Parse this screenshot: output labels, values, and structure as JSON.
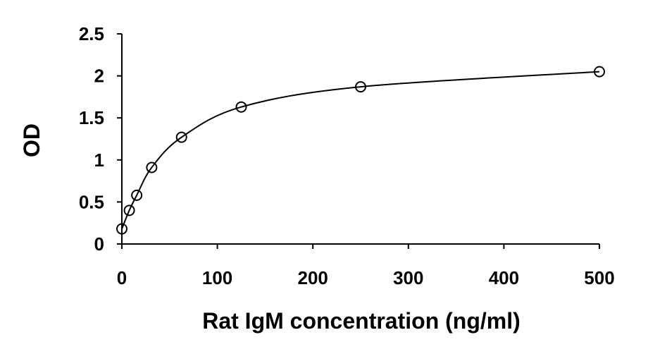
{
  "chart_data": {
    "type": "scatter",
    "title": "",
    "xlabel": "Rat IgM concentration (ng/ml)",
    "ylabel": "OD",
    "xlim": [
      0,
      500
    ],
    "ylim": [
      0,
      2.5
    ],
    "xticks": [
      0,
      100,
      200,
      300,
      400,
      500
    ],
    "xtick_labels": [
      "0",
      "100",
      "200",
      "300",
      "400",
      "500"
    ],
    "yticks": [
      0,
      0.5,
      1,
      1.5,
      2,
      2.5
    ],
    "ytick_labels": [
      "0",
      "0.5",
      "1",
      "1.5",
      "2",
      "2.5"
    ],
    "grid": false,
    "legend": false,
    "marker": "open-circle",
    "fit_line": "smooth curve",
    "color": "#000000",
    "series": [
      {
        "x": [
          0,
          7.8,
          15.6,
          31.25,
          62.5,
          125,
          250,
          500
        ],
        "y": [
          0.18,
          0.4,
          0.58,
          0.91,
          1.27,
          1.63,
          1.87,
          2.05
        ]
      }
    ]
  }
}
